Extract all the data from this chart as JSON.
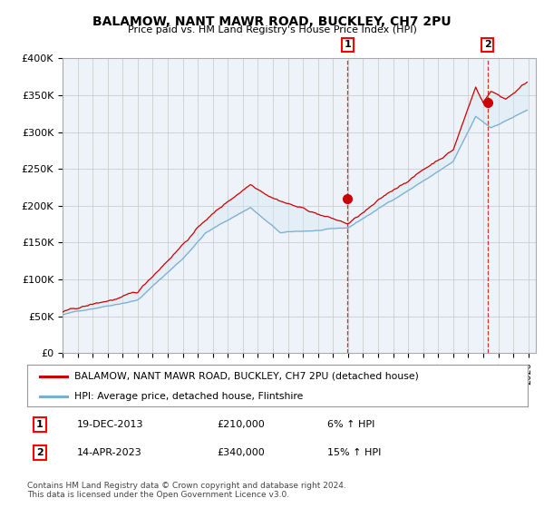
{
  "title": "BALAMOW, NANT MAWR ROAD, BUCKLEY, CH7 2PU",
  "subtitle": "Price paid vs. HM Land Registry's House Price Index (HPI)",
  "ylabel_ticks": [
    "£0",
    "£50K",
    "£100K",
    "£150K",
    "£200K",
    "£250K",
    "£300K",
    "£350K",
    "£400K"
  ],
  "ylim": [
    0,
    400000
  ],
  "xlim_start": 1995.0,
  "xlim_end": 2026.5,
  "sale1_x": 2013.97,
  "sale1_y": 210000,
  "sale1_label": "1",
  "sale1_date": "19-DEC-2013",
  "sale1_price": "£210,000",
  "sale1_hpi": "6% ↑ HPI",
  "sale2_x": 2023.29,
  "sale2_y": 340000,
  "sale2_label": "2",
  "sale2_date": "14-APR-2023",
  "sale2_price": "£340,000",
  "sale2_hpi": "15% ↑ HPI",
  "line_red_color": "#cc0000",
  "line_blue_color": "#7aadcf",
  "fill_blue_color": "#d6e8f5",
  "grid_color": "#cccccc",
  "plot_bg_color": "#eef3fa",
  "legend_line1": "BALAMOW, NANT MAWR ROAD, BUCKLEY, CH7 2PU (detached house)",
  "legend_line2": "HPI: Average price, detached house, Flintshire",
  "footnote": "Contains HM Land Registry data © Crown copyright and database right 2024.\nThis data is licensed under the Open Government Licence v3.0."
}
